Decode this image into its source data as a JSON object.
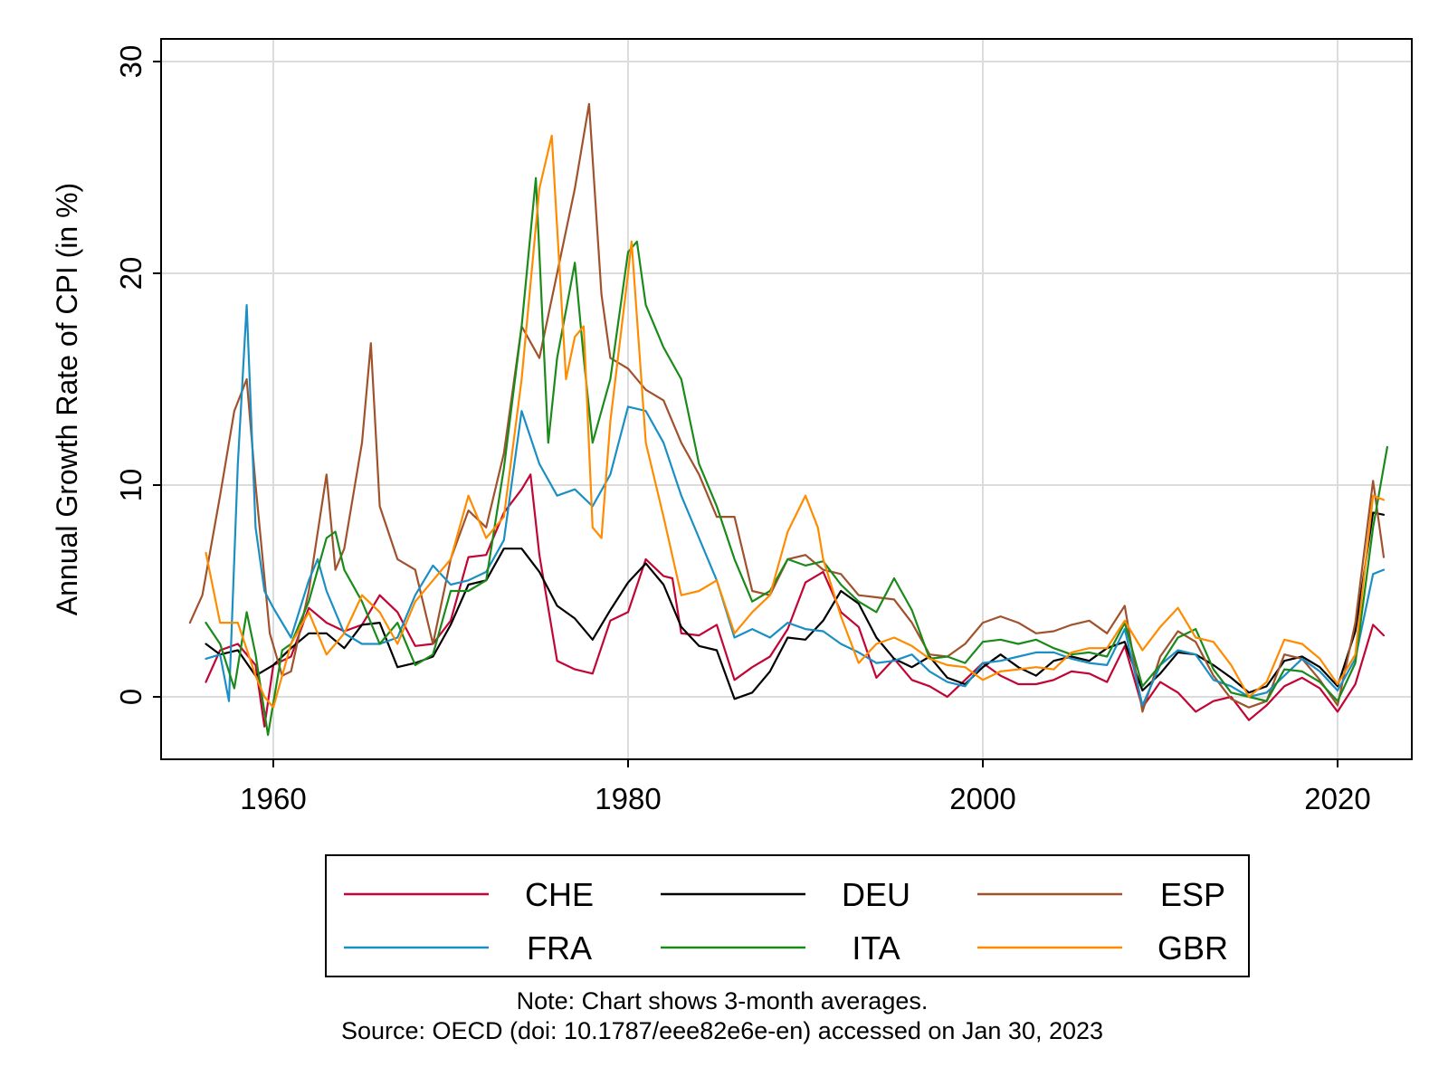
{
  "chart_data": {
    "type": "line",
    "title": "",
    "xlabel": "",
    "ylabel": "Annual Growth Rate of CPI (in %)",
    "xlim": [
      1955,
      2024
    ],
    "ylim": [
      -3,
      30
    ],
    "xticks": [
      "1960",
      "1980",
      "2000",
      "2020"
    ],
    "yticks": [
      "0",
      "10",
      "20",
      "30"
    ],
    "grid": true,
    "legend_position": "bottom",
    "note": "Note: Chart shows 3-month averages.",
    "source": "Source: OECD (doi: 10.1787/eee82e6e-en) accessed on Jan 30, 2023",
    "series": [
      {
        "name": "CHE",
        "color": "#c10534",
        "x": [
          1956.2,
          1957,
          1958,
          1959,
          1959.5,
          1960,
          1961,
          1962,
          1963,
          1964,
          1965,
          1966,
          1967,
          1968,
          1969,
          1970,
          1971,
          1972,
          1973,
          1974,
          1974.5,
          1975,
          1976,
          1977,
          1978,
          1979,
          1980,
          1981,
          1982,
          1982.5,
          1983,
          1984,
          1985,
          1986,
          1987,
          1988,
          1989,
          1990,
          1991,
          1992,
          1993,
          1994,
          1995,
          1996,
          1997,
          1998,
          1999,
          2000,
          2001,
          2002,
          2003,
          2004,
          2005,
          2006,
          2007,
          2008,
          2009,
          2010,
          2011,
          2012,
          2013,
          2014,
          2015,
          2016,
          2017,
          2018,
          2019,
          2020,
          2021,
          2022,
          2022.6
        ],
        "y": [
          0.7,
          2.2,
          2.5,
          1.5,
          -1.4,
          1.5,
          1.9,
          4.2,
          3.5,
          3.1,
          3.4,
          4.8,
          4.0,
          2.4,
          2.5,
          3.6,
          6.6,
          6.7,
          8.7,
          9.8,
          10.5,
          6.7,
          1.7,
          1.3,
          1.1,
          3.6,
          4.0,
          6.5,
          5.7,
          5.6,
          3.0,
          2.9,
          3.4,
          0.8,
          1.4,
          1.9,
          3.2,
          5.4,
          5.9,
          4.0,
          3.3,
          0.9,
          1.8,
          0.8,
          0.5,
          0.0,
          0.8,
          1.6,
          1.0,
          0.6,
          0.6,
          0.8,
          1.2,
          1.1,
          0.7,
          2.4,
          -0.5,
          0.7,
          0.2,
          -0.7,
          -0.2,
          0.0,
          -1.1,
          -0.4,
          0.5,
          0.9,
          0.4,
          -0.7,
          0.6,
          3.4,
          2.9
        ]
      },
      {
        "name": "DEU",
        "color": "#000000",
        "x": [
          1956.2,
          1957,
          1958,
          1959,
          1960,
          1961,
          1962,
          1963,
          1964,
          1965,
          1966,
          1967,
          1968,
          1969,
          1970,
          1971,
          1972,
          1973,
          1974,
          1975,
          1976,
          1977,
          1978,
          1979,
          1980,
          1981,
          1982,
          1983,
          1984,
          1985,
          1986,
          1987,
          1988,
          1989,
          1990,
          1991,
          1992,
          1993,
          1994,
          1995,
          1996,
          1997,
          1998,
          1999,
          2000,
          2001,
          2002,
          2003,
          2004,
          2005,
          2006,
          2007,
          2008,
          2009,
          2010,
          2011,
          2012,
          2013,
          2014,
          2015,
          2016,
          2017,
          2018,
          2019,
          2020,
          2021,
          2022,
          2022.6
        ],
        "y": [
          2.5,
          2.0,
          2.2,
          1.0,
          1.5,
          2.3,
          3.0,
          3.0,
          2.3,
          3.4,
          3.5,
          1.4,
          1.6,
          1.9,
          3.4,
          5.3,
          5.5,
          7.0,
          7.0,
          5.9,
          4.3,
          3.7,
          2.7,
          4.1,
          5.4,
          6.3,
          5.3,
          3.3,
          2.4,
          2.2,
          -0.1,
          0.2,
          1.2,
          2.8,
          2.7,
          3.6,
          5.0,
          4.4,
          2.8,
          1.8,
          1.4,
          1.9,
          0.9,
          0.6,
          1.4,
          2.0,
          1.4,
          1.0,
          1.7,
          1.9,
          1.7,
          2.3,
          2.6,
          0.3,
          1.1,
          2.1,
          2.0,
          1.5,
          0.9,
          0.2,
          0.5,
          1.7,
          1.9,
          1.4,
          0.5,
          3.1,
          8.7,
          8.6
        ]
      },
      {
        "name": "ESP",
        "color": "#a0522d",
        "x": [
          1955.3,
          1956,
          1957,
          1957.8,
          1958.5,
          1959,
          1959.8,
          1960.5,
          1961,
          1962,
          1963,
          1963.5,
          1964,
          1965,
          1965.5,
          1966,
          1967,
          1968,
          1969,
          1970,
          1971,
          1972,
          1973,
          1974,
          1975,
          1976,
          1977,
          1977.8,
          1978.5,
          1979,
          1980,
          1981,
          1982,
          1983,
          1984,
          1985,
          1986,
          1987,
          1988,
          1989,
          1990,
          1991,
          1992,
          1993,
          1994,
          1995,
          1996,
          1997,
          1998,
          1999,
          2000,
          2001,
          2002,
          2003,
          2004,
          2005,
          2006,
          2007,
          2008,
          2009,
          2010,
          2011,
          2012,
          2013,
          2014,
          2015,
          2016,
          2017,
          2018,
          2019,
          2020,
          2021,
          2022,
          2022.6
        ],
        "y": [
          3.5,
          4.8,
          9.5,
          13.5,
          15.0,
          10.0,
          3.0,
          1.0,
          1.2,
          5.0,
          10.5,
          6.0,
          7.0,
          12.0,
          16.7,
          9.0,
          6.5,
          6.0,
          2.5,
          6.5,
          8.8,
          8.0,
          11.5,
          17.5,
          16.0,
          20.0,
          24.0,
          28.0,
          19.0,
          16.0,
          15.5,
          14.5,
          14.0,
          12.0,
          10.5,
          8.5,
          8.5,
          5.0,
          4.8,
          6.5,
          6.7,
          6.0,
          5.8,
          4.8,
          4.7,
          4.6,
          3.5,
          2.0,
          1.9,
          2.5,
          3.5,
          3.8,
          3.5,
          3.0,
          3.1,
          3.4,
          3.6,
          3.0,
          4.3,
          -0.7,
          1.9,
          3.1,
          2.6,
          1.0,
          -0.1,
          -0.5,
          -0.2,
          2.0,
          1.8,
          0.8,
          -0.4,
          3.5,
          10.2,
          6.6
        ]
      },
      {
        "name": "FRA",
        "color": "#1a8fc4",
        "x": [
          1956.2,
          1957,
          1957.5,
          1958,
          1958.5,
          1959,
          1959.5,
          1960,
          1961,
          1962,
          1962.5,
          1963,
          1964,
          1965,
          1966,
          1967,
          1968,
          1969,
          1970,
          1971,
          1972,
          1973,
          1974,
          1975,
          1976,
          1977,
          1978,
          1979,
          1980,
          1981,
          1982,
          1983,
          1984,
          1985,
          1986,
          1987,
          1988,
          1989,
          1990,
          1991,
          1992,
          1993,
          1994,
          1995,
          1996,
          1997,
          1998,
          1999,
          2000,
          2001,
          2002,
          2003,
          2004,
          2005,
          2006,
          2007,
          2008,
          2009,
          2010,
          2011,
          2012,
          2013,
          2014,
          2015,
          2016,
          2017,
          2018,
          2019,
          2020,
          2021,
          2022,
          2022.6
        ],
        "y": [
          1.8,
          2.0,
          -0.2,
          11.0,
          18.5,
          8.0,
          5.0,
          4.2,
          2.8,
          5.5,
          6.5,
          5.0,
          3.0,
          2.5,
          2.5,
          2.8,
          4.8,
          6.2,
          5.3,
          5.5,
          5.9,
          7.4,
          13.5,
          11.0,
          9.5,
          9.8,
          9.0,
          10.5,
          13.7,
          13.5,
          12.0,
          9.5,
          7.5,
          5.5,
          2.8,
          3.2,
          2.8,
          3.5,
          3.2,
          3.1,
          2.5,
          2.1,
          1.6,
          1.7,
          2.0,
          1.2,
          0.7,
          0.5,
          1.6,
          1.7,
          1.9,
          2.1,
          2.1,
          1.8,
          1.6,
          1.5,
          3.2,
          -0.4,
          1.5,
          2.2,
          2.0,
          0.8,
          0.5,
          0.0,
          0.2,
          1.0,
          1.8,
          1.2,
          0.3,
          1.8,
          5.8,
          6.0
        ]
      },
      {
        "name": "ITA",
        "color": "#1a8a1a",
        "x": [
          1956.2,
          1957,
          1957.8,
          1958.5,
          1959,
          1959.7,
          1960.5,
          1961,
          1962,
          1963,
          1963.5,
          1964,
          1965,
          1966,
          1967,
          1968,
          1969,
          1970,
          1971,
          1972,
          1973,
          1974,
          1974.8,
          1975.5,
          1976,
          1977,
          1977.5,
          1978,
          1979,
          1980,
          1980.5,
          1981,
          1982,
          1983,
          1984,
          1985,
          1986,
          1987,
          1988,
          1989,
          1990,
          1991,
          1992,
          1993,
          1994,
          1995,
          1996,
          1997,
          1998,
          1999,
          2000,
          2001,
          2002,
          2003,
          2004,
          2005,
          2006,
          2007,
          2008,
          2009,
          2010,
          2011,
          2012,
          2013,
          2014,
          2015,
          2016,
          2017,
          2018,
          2019,
          2020,
          2021,
          2022,
          2022.8
        ],
        "y": [
          3.5,
          2.5,
          0.4,
          4.0,
          2.0,
          -1.8,
          2.2,
          2.5,
          4.5,
          7.5,
          7.8,
          6.0,
          4.5,
          2.5,
          3.5,
          1.5,
          2.0,
          5.0,
          5.0,
          5.5,
          10.8,
          17.5,
          24.5,
          12.0,
          16.0,
          20.5,
          16.0,
          12.0,
          15.0,
          21.0,
          21.5,
          18.5,
          16.5,
          15.0,
          11.0,
          9.0,
          6.5,
          4.5,
          5.0,
          6.5,
          6.2,
          6.4,
          5.3,
          4.5,
          4.0,
          5.6,
          4.1,
          1.8,
          1.9,
          1.6,
          2.6,
          2.7,
          2.5,
          2.7,
          2.3,
          2.0,
          2.1,
          1.9,
          3.5,
          0.5,
          1.5,
          2.8,
          3.2,
          1.3,
          0.2,
          0.0,
          -0.2,
          1.3,
          1.2,
          0.7,
          -0.2,
          1.6,
          8.0,
          11.8
        ]
      },
      {
        "name": "GBR",
        "color": "#ff8c00",
        "x": [
          1956.2,
          1957,
          1958,
          1959,
          1959.5,
          1960,
          1961,
          1962,
          1963,
          1964,
          1965,
          1966,
          1967,
          1968,
          1969,
          1970,
          1971,
          1972,
          1973,
          1974,
          1975,
          1975.7,
          1976.5,
          1977,
          1977.5,
          1978,
          1978.5,
          1979,
          1980,
          1980.2,
          1981,
          1982,
          1983,
          1984,
          1985,
          1986,
          1987,
          1988,
          1989,
          1990,
          1990.7,
          1991,
          1992,
          1993,
          1994,
          1995,
          1996,
          1997,
          1998,
          1999,
          2000,
          2001,
          2002,
          2003,
          2004,
          2005,
          2006,
          2007,
          2008,
          2009,
          2010,
          2011,
          2012,
          2013,
          2014,
          2015,
          2016,
          2017,
          2018,
          2019,
          2020,
          2021,
          2022,
          2022.6
        ],
        "y": [
          6.8,
          3.5,
          3.5,
          1.0,
          0.0,
          -0.5,
          2.5,
          4.0,
          2.0,
          3.0,
          4.8,
          4.0,
          2.5,
          4.5,
          5.5,
          6.5,
          9.5,
          7.5,
          8.5,
          15.0,
          24.0,
          26.5,
          15.0,
          17.0,
          17.5,
          8.0,
          7.5,
          13.0,
          20.0,
          21.5,
          12.0,
          8.5,
          4.8,
          5.0,
          5.5,
          3.0,
          4.0,
          4.8,
          7.8,
          9.5,
          8.0,
          6.5,
          3.8,
          1.6,
          2.5,
          2.8,
          2.4,
          1.8,
          1.5,
          1.4,
          0.8,
          1.2,
          1.3,
          1.4,
          1.3,
          2.1,
          2.3,
          2.3,
          3.6,
          2.2,
          3.3,
          4.2,
          2.8,
          2.6,
          1.5,
          0.0,
          0.7,
          2.7,
          2.5,
          1.8,
          0.6,
          2.0,
          9.5,
          9.3
        ]
      }
    ]
  },
  "legend": {
    "items": [
      {
        "label": "CHE"
      },
      {
        "label": "DEU"
      },
      {
        "label": "ESP"
      },
      {
        "label": "FRA"
      },
      {
        "label": "ITA"
      },
      {
        "label": "GBR"
      }
    ]
  }
}
